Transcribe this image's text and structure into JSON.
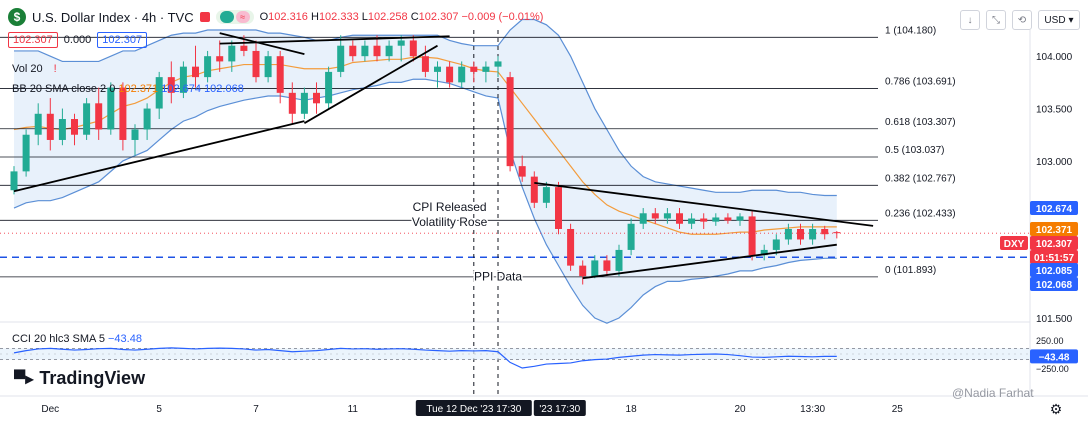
{
  "header": {
    "logo_letter": "$",
    "title": "U.S. Dollar Index · 4h · TVC",
    "ohlc": {
      "o_label": "O",
      "o": "102.316",
      "h_label": "H",
      "h": "102.333",
      "l_label": "L",
      "l": "102.258",
      "c_label": "C",
      "c": "102.307",
      "change": "−0.009 (−0.01%)"
    },
    "sell_price": "102.307",
    "spread": "0.000",
    "buy_price": "102.307",
    "vol_label": "Vol 20",
    "bb_label": "BB 20 SMA close 2 0",
    "bb_values": [
      "102.371",
      "102.674",
      "102.068"
    ],
    "cci_label": "CCI 20 hlc3 SMA 5",
    "cci_value": "−43.48"
  },
  "toolbar": {
    "currency": "USD",
    "icons": [
      "chevron-down-icon",
      "collapse-icon",
      "reset-icon"
    ]
  },
  "brand": "TradingView",
  "watermark": "@Nadia Farhat",
  "colors": {
    "up": "#22ab94",
    "down": "#f23645",
    "bb_band": "#5b8fd6",
    "bb_basis": "#f39c3c",
    "bb_fill": "#d8e8f8",
    "fib_line": "#131722",
    "dashed_blue": "#1e53e5"
  },
  "chart_data": {
    "type": "candlestick",
    "title": "U.S. Dollar Index",
    "ylim": [
      101.5,
      104.25
    ],
    "y_ticks": [
      "104.000",
      "103.500",
      "103.000",
      "101.500"
    ],
    "y_tick_values": [
      104.0,
      103.5,
      103.0,
      101.5
    ],
    "x_ticks": [
      "Dec",
      "5",
      "7",
      "11",
      "18",
      "20",
      "13:30",
      "25"
    ],
    "x_tick_indices": [
      3,
      12,
      20,
      28,
      51,
      60,
      66,
      73
    ],
    "crosshair_label": "Tue 12 Dec '23  17:30",
    "crosshair_label_2": "'23  17:30",
    "crosshair_index": 38,
    "crosshair_index_2": 40,
    "fib_levels": [
      {
        "label": "1 (104.180)",
        "value": 104.18
      },
      {
        "label": "0.786 (103.691)",
        "value": 103.691
      },
      {
        "label": "0.618 (103.307)",
        "value": 103.307
      },
      {
        "label": "0.5 (103.037)",
        "value": 103.037
      },
      {
        "label": "0.382 (102.767)",
        "value": 102.767
      },
      {
        "label": "0.236 (102.433)",
        "value": 102.433
      },
      {
        "label": "0 (101.893)",
        "value": 101.893
      }
    ],
    "price_tags": [
      {
        "label": "102.674",
        "value": 102.674,
        "color": "#2962ff"
      },
      {
        "label": "102.371",
        "value": 102.371,
        "color": "#f57c00"
      },
      {
        "label": "DXY",
        "value": 102.307,
        "color": "#f23645"
      },
      {
        "label": "102.307",
        "value": 102.307,
        "color": "#f23645"
      },
      {
        "label": "01:51:57",
        "value": 102.307,
        "color": "#f23645"
      },
      {
        "label": "102.085",
        "value": 102.085,
        "color": "#2962ff"
      },
      {
        "label": "102.068",
        "value": 102.068,
        "color": "#2962ff"
      }
    ],
    "dashed_level": 102.08,
    "annotations": [
      {
        "text": "CPI Released",
        "index": 36,
        "value": 102.52
      },
      {
        "text": "Volatility Rose",
        "index": 36,
        "value": 102.38
      },
      {
        "text": "PPI Data",
        "index": 40,
        "value": 101.86
      }
    ],
    "trendlines": [
      {
        "from": [
          0,
          102.71
        ],
        "to": [
          24,
          103.38
        ]
      },
      {
        "from": [
          17,
          104.22
        ],
        "to": [
          24,
          104.02
        ]
      },
      {
        "from": [
          17,
          104.12
        ],
        "to": [
          36,
          104.19
        ]
      },
      {
        "from": [
          24,
          103.36
        ],
        "to": [
          35,
          104.1
        ]
      },
      {
        "from": [
          43,
          102.79
        ],
        "to": [
          71,
          102.38
        ]
      },
      {
        "from": [
          47,
          101.88
        ],
        "to": [
          68,
          102.2
        ]
      }
    ],
    "candles": [
      {
        "o": 102.72,
        "h": 102.95,
        "l": 102.68,
        "c": 102.9
      },
      {
        "o": 102.9,
        "h": 103.3,
        "l": 102.85,
        "c": 103.25
      },
      {
        "o": 103.25,
        "h": 103.55,
        "l": 103.15,
        "c": 103.45
      },
      {
        "o": 103.45,
        "h": 103.6,
        "l": 103.1,
        "c": 103.2
      },
      {
        "o": 103.2,
        "h": 103.5,
        "l": 103.15,
        "c": 103.4
      },
      {
        "o": 103.4,
        "h": 103.45,
        "l": 103.15,
        "c": 103.25
      },
      {
        "o": 103.25,
        "h": 103.6,
        "l": 103.2,
        "c": 103.55
      },
      {
        "o": 103.55,
        "h": 103.7,
        "l": 103.2,
        "c": 103.3
      },
      {
        "o": 103.3,
        "h": 103.75,
        "l": 103.25,
        "c": 103.7
      },
      {
        "o": 103.7,
        "h": 103.75,
        "l": 103.1,
        "c": 103.2
      },
      {
        "o": 103.2,
        "h": 103.35,
        "l": 103.05,
        "c": 103.3
      },
      {
        "o": 103.3,
        "h": 103.55,
        "l": 103.2,
        "c": 103.5
      },
      {
        "o": 103.5,
        "h": 103.85,
        "l": 103.4,
        "c": 103.8
      },
      {
        "o": 103.8,
        "h": 103.95,
        "l": 103.55,
        "c": 103.65
      },
      {
        "o": 103.65,
        "h": 103.95,
        "l": 103.6,
        "c": 103.9
      },
      {
        "o": 103.9,
        "h": 104.1,
        "l": 103.7,
        "c": 103.8
      },
      {
        "o": 103.8,
        "h": 104.05,
        "l": 103.75,
        "c": 104.0
      },
      {
        "o": 104.0,
        "h": 104.15,
        "l": 103.85,
        "c": 103.95
      },
      {
        "o": 103.95,
        "h": 104.15,
        "l": 103.85,
        "c": 104.1
      },
      {
        "o": 104.1,
        "h": 104.2,
        "l": 104.0,
        "c": 104.05
      },
      {
        "o": 104.05,
        "h": 104.15,
        "l": 103.75,
        "c": 103.8
      },
      {
        "o": 103.8,
        "h": 104.05,
        "l": 103.75,
        "c": 104.0
      },
      {
        "o": 104.0,
        "h": 104.05,
        "l": 103.55,
        "c": 103.65
      },
      {
        "o": 103.65,
        "h": 103.75,
        "l": 103.35,
        "c": 103.45
      },
      {
        "o": 103.45,
        "h": 103.7,
        "l": 103.4,
        "c": 103.65
      },
      {
        "o": 103.65,
        "h": 103.75,
        "l": 103.45,
        "c": 103.55
      },
      {
        "o": 103.55,
        "h": 103.9,
        "l": 103.5,
        "c": 103.85
      },
      {
        "o": 103.85,
        "h": 104.2,
        "l": 103.8,
        "c": 104.1
      },
      {
        "o": 104.1,
        "h": 104.15,
        "l": 103.95,
        "c": 104.0
      },
      {
        "o": 104.0,
        "h": 104.15,
        "l": 103.95,
        "c": 104.1
      },
      {
        "o": 104.1,
        "h": 104.2,
        "l": 103.95,
        "c": 104.0
      },
      {
        "o": 104.0,
        "h": 104.15,
        "l": 103.95,
        "c": 104.1
      },
      {
        "o": 104.1,
        "h": 104.2,
        "l": 103.95,
        "c": 104.15
      },
      {
        "o": 104.15,
        "h": 104.2,
        "l": 103.95,
        "c": 104.0
      },
      {
        "o": 104.0,
        "h": 104.1,
        "l": 103.8,
        "c": 103.85
      },
      {
        "o": 103.85,
        "h": 103.95,
        "l": 103.7,
        "c": 103.9
      },
      {
        "o": 103.9,
        "h": 103.95,
        "l": 103.7,
        "c": 103.75
      },
      {
        "o": 103.75,
        "h": 103.95,
        "l": 103.7,
        "c": 103.9
      },
      {
        "o": 103.9,
        "h": 103.95,
        "l": 103.75,
        "c": 103.85
      },
      {
        "o": 103.85,
        "h": 103.95,
        "l": 103.75,
        "c": 103.9
      },
      {
        "o": 103.9,
        "h": 104.0,
        "l": 103.8,
        "c": 103.95
      },
      {
        "o": 103.8,
        "h": 103.85,
        "l": 102.9,
        "c": 102.95
      },
      {
        "o": 102.95,
        "h": 103.05,
        "l": 102.8,
        "c": 102.85
      },
      {
        "o": 102.85,
        "h": 102.9,
        "l": 102.55,
        "c": 102.6
      },
      {
        "o": 102.6,
        "h": 102.8,
        "l": 102.55,
        "c": 102.75
      },
      {
        "o": 102.75,
        "h": 102.8,
        "l": 102.3,
        "c": 102.35
      },
      {
        "o": 102.35,
        "h": 102.4,
        "l": 101.95,
        "c": 102.0
      },
      {
        "o": 102.0,
        "h": 102.05,
        "l": 101.82,
        "c": 101.9
      },
      {
        "o": 101.9,
        "h": 102.1,
        "l": 101.88,
        "c": 102.05
      },
      {
        "o": 102.05,
        "h": 102.1,
        "l": 101.9,
        "c": 101.95
      },
      {
        "o": 101.95,
        "h": 102.2,
        "l": 101.9,
        "c": 102.15
      },
      {
        "o": 102.15,
        "h": 102.45,
        "l": 102.1,
        "c": 102.4
      },
      {
        "o": 102.4,
        "h": 102.55,
        "l": 102.35,
        "c": 102.5
      },
      {
        "o": 102.5,
        "h": 102.55,
        "l": 102.4,
        "c": 102.45
      },
      {
        "o": 102.45,
        "h": 102.55,
        "l": 102.4,
        "c": 102.5
      },
      {
        "o": 102.5,
        "h": 102.55,
        "l": 102.35,
        "c": 102.4
      },
      {
        "o": 102.4,
        "h": 102.5,
        "l": 102.35,
        "c": 102.45
      },
      {
        "o": 102.45,
        "h": 102.5,
        "l": 102.35,
        "c": 102.42
      },
      {
        "o": 102.42,
        "h": 102.5,
        "l": 102.38,
        "c": 102.46
      },
      {
        "o": 102.46,
        "h": 102.5,
        "l": 102.4,
        "c": 102.43
      },
      {
        "o": 102.43,
        "h": 102.5,
        "l": 102.38,
        "c": 102.47
      },
      {
        "o": 102.47,
        "h": 102.52,
        "l": 102.05,
        "c": 102.1
      },
      {
        "o": 102.1,
        "h": 102.2,
        "l": 102.05,
        "c": 102.15
      },
      {
        "o": 102.15,
        "h": 102.3,
        "l": 102.1,
        "c": 102.25
      },
      {
        "o": 102.25,
        "h": 102.4,
        "l": 102.2,
        "c": 102.35
      },
      {
        "o": 102.35,
        "h": 102.4,
        "l": 102.2,
        "c": 102.25
      },
      {
        "o": 102.25,
        "h": 102.4,
        "l": 102.2,
        "c": 102.35
      },
      {
        "o": 102.35,
        "h": 102.38,
        "l": 102.25,
        "c": 102.3
      },
      {
        "o": 102.32,
        "h": 102.33,
        "l": 102.26,
        "c": 102.31
      }
    ],
    "bb_upper": [
      104.05,
      104.05,
      104.05,
      104.0,
      103.95,
      103.95,
      103.95,
      103.95,
      104.0,
      104.05,
      104.05,
      104.1,
      104.15,
      104.2,
      104.22,
      104.22,
      104.25,
      104.25,
      104.25,
      104.25,
      104.25,
      104.22,
      104.22,
      104.2,
      104.18,
      104.15,
      104.15,
      104.18,
      104.2,
      104.2,
      104.2,
      104.2,
      104.2,
      104.2,
      104.2,
      104.2,
      104.15,
      104.12,
      104.1,
      104.1,
      104.1,
      104.25,
      104.35,
      104.35,
      104.3,
      104.2,
      104.0,
      103.75,
      103.5,
      103.3,
      103.1,
      102.95,
      102.85,
      102.8,
      102.78,
      102.76,
      102.74,
      102.72,
      102.7,
      102.7,
      102.7,
      102.72,
      102.72,
      102.72,
      102.7,
      102.7,
      102.68,
      102.67,
      102.67
    ],
    "bb_lower": [
      102.55,
      102.6,
      102.62,
      102.62,
      102.65,
      102.7,
      102.75,
      102.8,
      102.9,
      103.0,
      103.05,
      103.1,
      103.2,
      103.3,
      103.38,
      103.42,
      103.48,
      103.52,
      103.55,
      103.58,
      103.6,
      103.62,
      103.62,
      103.6,
      103.58,
      103.6,
      103.62,
      103.65,
      103.68,
      103.7,
      103.72,
      103.75,
      103.75,
      103.78,
      103.78,
      103.76,
      103.74,
      103.7,
      103.66,
      103.62,
      103.6,
      103.1,
      102.75,
      102.45,
      102.2,
      102.0,
      101.8,
      101.62,
      101.5,
      101.45,
      101.5,
      101.6,
      101.72,
      101.8,
      101.85,
      101.85,
      101.87,
      101.88,
      101.9,
      101.92,
      101.95,
      101.95,
      101.98,
      102.0,
      102.03,
      102.05,
      102.06,
      102.07,
      102.07
    ],
    "bb_basis": [
      103.3,
      103.32,
      103.33,
      103.31,
      103.3,
      103.32,
      103.35,
      103.38,
      103.45,
      103.52,
      103.55,
      103.6,
      103.68,
      103.75,
      103.8,
      103.82,
      103.86,
      103.88,
      103.9,
      103.92,
      103.92,
      103.92,
      103.92,
      103.9,
      103.88,
      103.88,
      103.88,
      103.9,
      103.94,
      103.95,
      103.96,
      103.97,
      103.97,
      103.99,
      103.99,
      103.98,
      103.95,
      103.92,
      103.88,
      103.86,
      103.85,
      103.7,
      103.55,
      103.4,
      103.25,
      103.1,
      102.95,
      102.8,
      102.68,
      102.58,
      102.52,
      102.48,
      102.44,
      102.4,
      102.36,
      102.32,
      102.3,
      102.3,
      102.3,
      102.31,
      102.32,
      102.32,
      102.34,
      102.35,
      102.36,
      102.37,
      102.37,
      102.37,
      102.37
    ],
    "cci": {
      "ylim": [
        -250,
        250
      ],
      "ticks": [
        "250.00",
        "−250.00"
      ],
      "tick_values": [
        250,
        -250
      ],
      "value_label": "−43.48",
      "band": [
        100,
        -100
      ],
      "cci_line": [
        20,
        60,
        90,
        100,
        85,
        70,
        80,
        95,
        100,
        80,
        70,
        85,
        100,
        110,
        100,
        90,
        100,
        105,
        100,
        90,
        70,
        80,
        60,
        40,
        50,
        60,
        80,
        100,
        90,
        95,
        85,
        90,
        95,
        85,
        70,
        60,
        50,
        60,
        55,
        60,
        40,
        -150,
        -250,
        -220,
        -180,
        -170,
        -160,
        -120,
        -100,
        -90,
        -60,
        -40,
        -20,
        -10,
        -15,
        -20,
        -10,
        -5,
        0,
        -10,
        -30,
        -55,
        -60,
        -50,
        -40,
        -45,
        -50,
        -43,
        -43
      ]
    }
  }
}
